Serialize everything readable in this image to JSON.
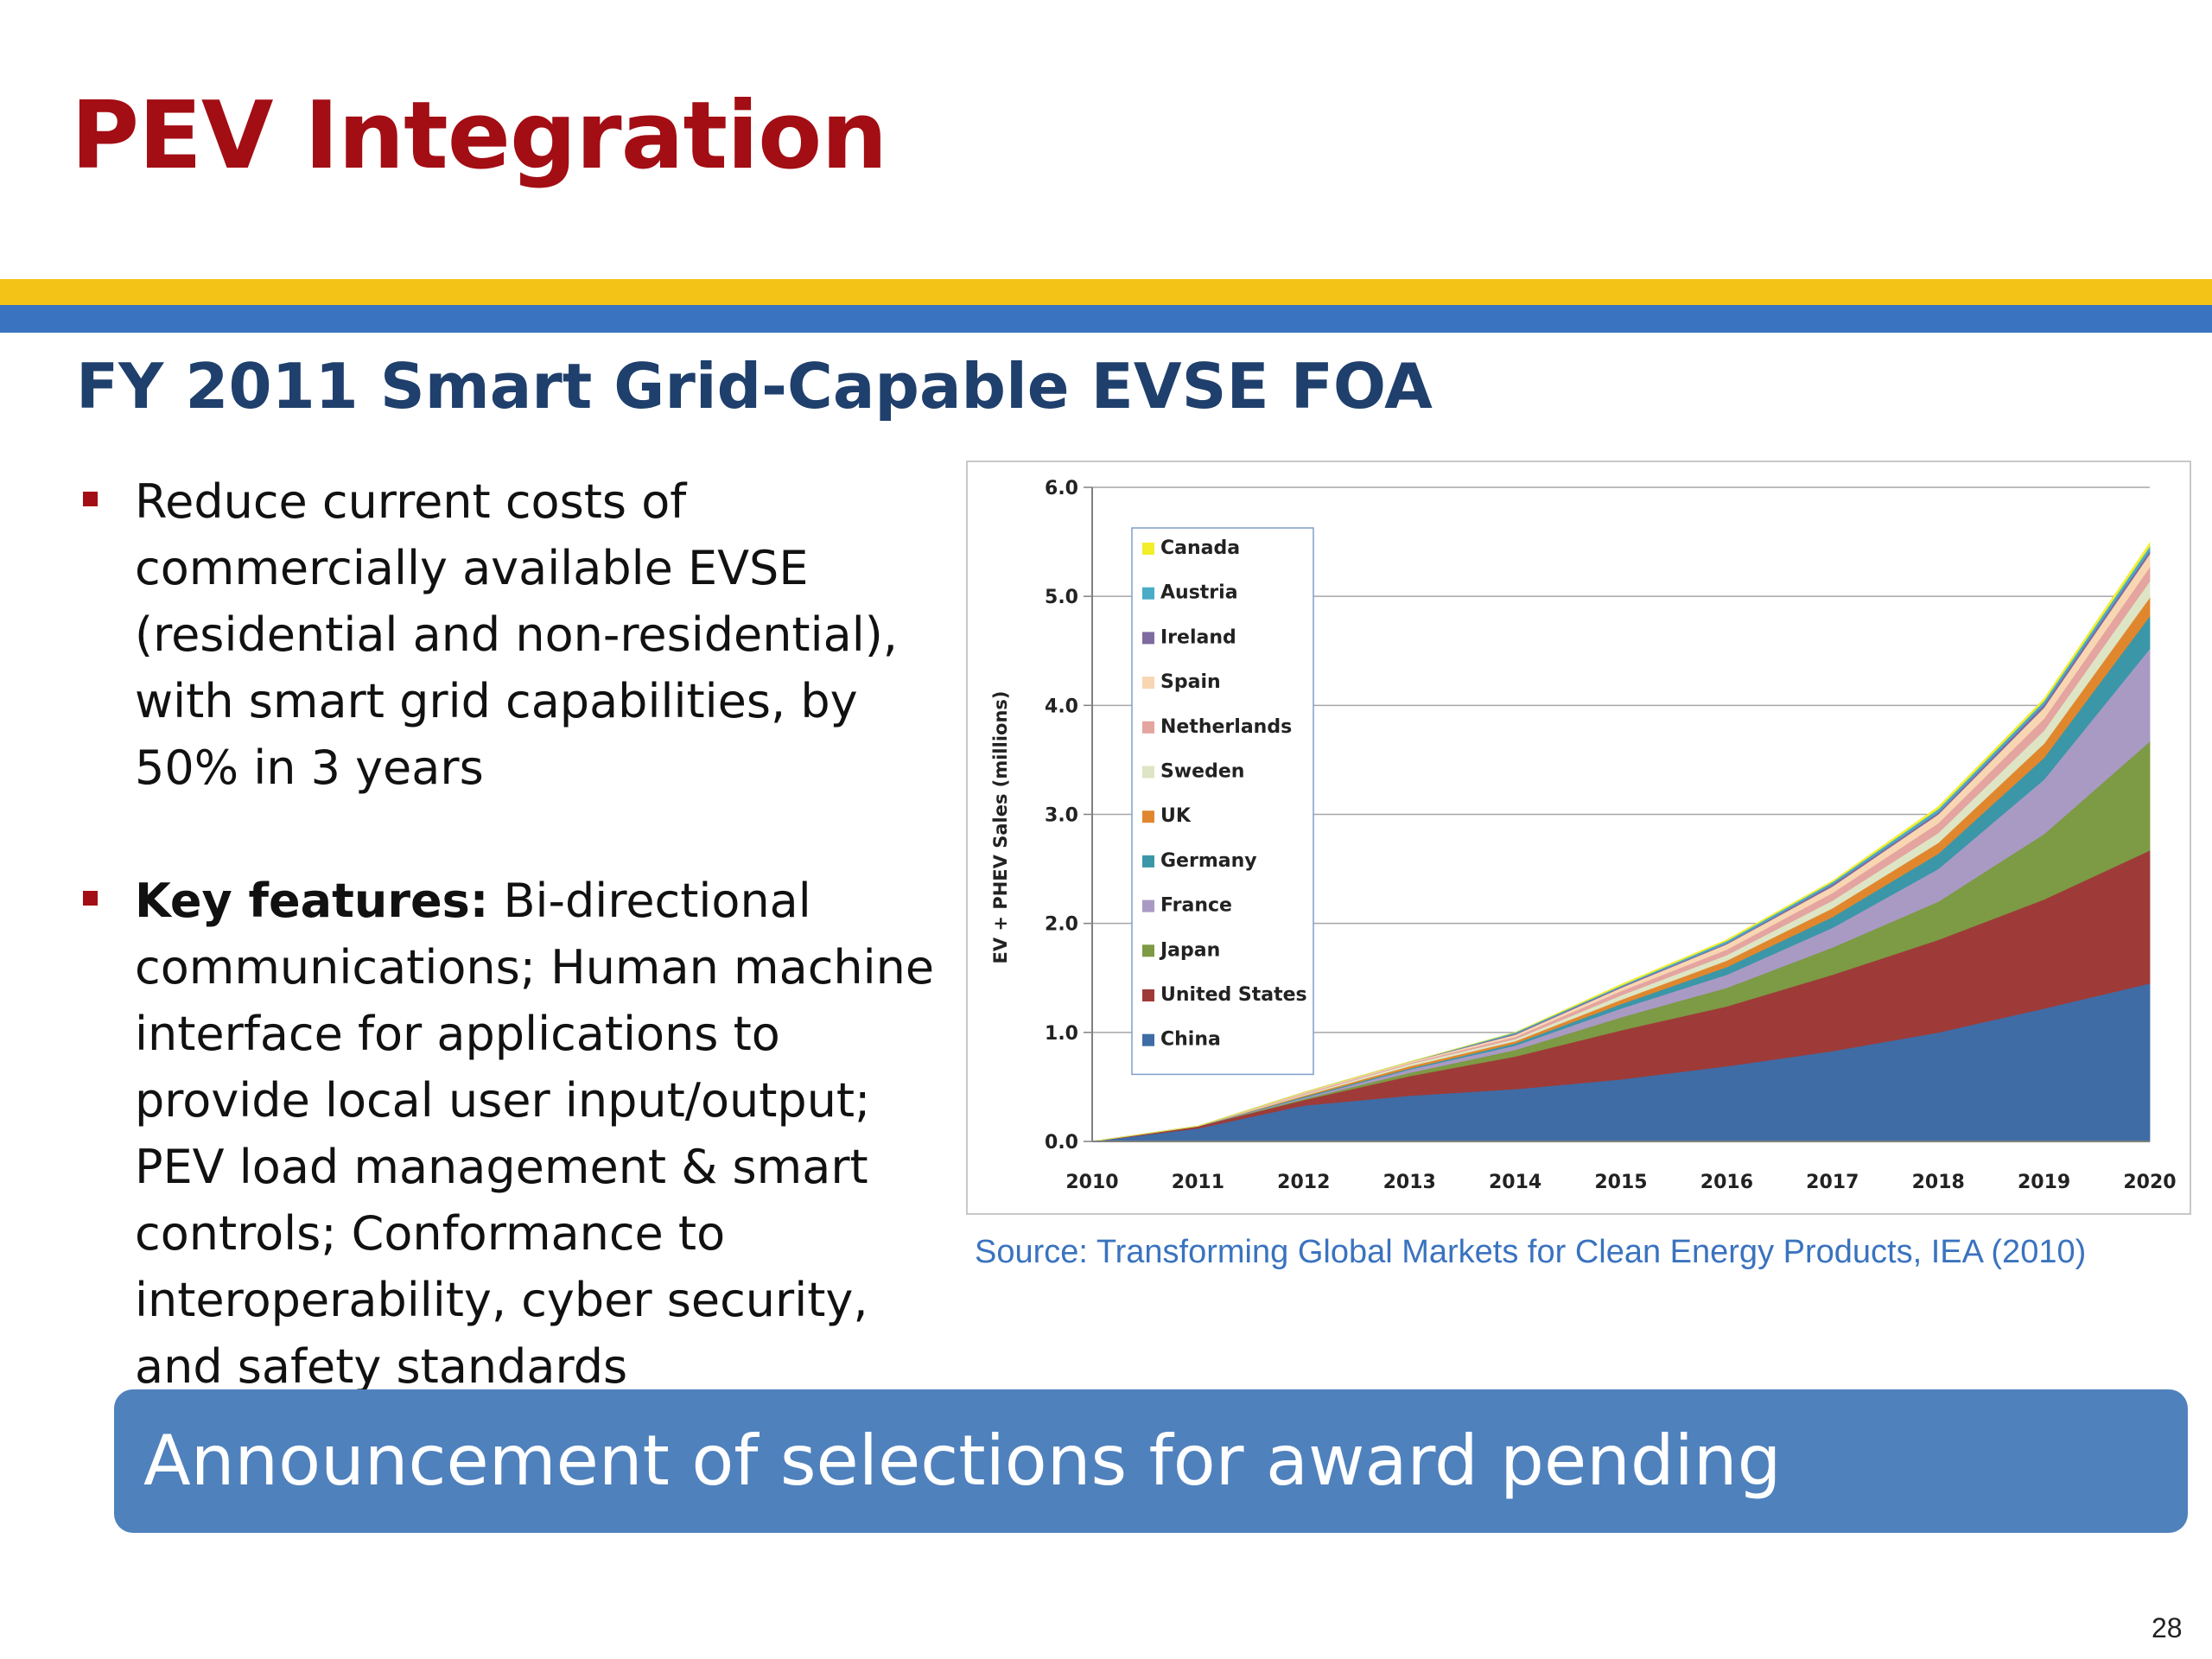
{
  "slide": {
    "title": "PEV Integration",
    "subtitle": "FY 2011 Smart Grid-Capable EVSE FOA",
    "page_number": "28"
  },
  "bullets": [
    {
      "strong": "",
      "text": "Reduce current costs of commercially available EVSE (residential and non-residential), with smart grid capabilities, by 50% in 3 years"
    },
    {
      "strong": "Key features:",
      "text": "Bi-directional communications; Human machine interface for applications to provide local user input/output; PEV load management & smart controls; Conformance to interoperability, cyber security, and safety standards"
    }
  ],
  "source": "Source:  Transforming Global Markets for Clean Energy Products, IEA (2010)",
  "announcement": "Announcement of selections for award pending",
  "colors": {
    "title": "#a30d14",
    "subtitle": "#1f3f6c",
    "band_gold": "#f3c318",
    "band_blue": "#3a73bf",
    "banner": "#4f81bd"
  },
  "chart_data": {
    "type": "area",
    "stacked": true,
    "ylabel": "EV + PHEV Sales (millions)",
    "xlabel": "",
    "x": [
      "2010",
      "2011",
      "2012",
      "2013",
      "2014",
      "2015",
      "2016",
      "2017",
      "2018",
      "2019",
      "2020"
    ],
    "ylim": [
      0,
      6
    ],
    "yticks": [
      "0.0",
      "1.0",
      "2.0",
      "3.0",
      "4.0",
      "5.0",
      "6.0"
    ],
    "grid": true,
    "legend_position": "top-left",
    "series": [
      {
        "name": "China",
        "color": "#3f6ca5",
        "values": [
          0,
          0.12,
          0.33,
          0.42,
          0.48,
          0.57,
          0.69,
          0.83,
          1.0,
          1.22,
          1.45
        ]
      },
      {
        "name": "United States",
        "color": "#9e3b38",
        "values": [
          0,
          0.02,
          0.05,
          0.18,
          0.3,
          0.45,
          0.55,
          0.7,
          0.85,
          1.0,
          1.22
        ]
      },
      {
        "name": "Japan",
        "color": "#7d9a44",
        "values": [
          0,
          0,
          0.01,
          0.03,
          0.06,
          0.12,
          0.17,
          0.25,
          0.35,
          0.6,
          1.0
        ]
      },
      {
        "name": "France",
        "color": "#a99ac4",
        "values": [
          0,
          0,
          0.01,
          0.03,
          0.04,
          0.08,
          0.12,
          0.18,
          0.3,
          0.5,
          0.85
        ]
      },
      {
        "name": "Germany",
        "color": "#3b96a8",
        "values": [
          0,
          0,
          0.01,
          0.01,
          0.02,
          0.04,
          0.07,
          0.1,
          0.14,
          0.2,
          0.3
        ]
      },
      {
        "name": "UK",
        "color": "#e0872e",
        "values": [
          0,
          0,
          0.01,
          0.02,
          0.02,
          0.04,
          0.06,
          0.08,
          0.1,
          0.13,
          0.17
        ]
      },
      {
        "name": "Sweden",
        "color": "#dde5c5",
        "values": [
          0,
          0,
          0.01,
          0.02,
          0.02,
          0.04,
          0.05,
          0.07,
          0.09,
          0.12,
          0.15
        ]
      },
      {
        "name": "Netherlands",
        "color": "#e4a4a0",
        "values": [
          0,
          0,
          0.01,
          0.01,
          0.02,
          0.04,
          0.05,
          0.07,
          0.09,
          0.11,
          0.13
        ]
      },
      {
        "name": "Spain",
        "color": "#f8d6b2",
        "values": [
          0,
          0,
          0.01,
          0.01,
          0.02,
          0.03,
          0.05,
          0.06,
          0.08,
          0.1,
          0.12
        ]
      },
      {
        "name": "Ireland",
        "color": "#7f6ba0",
        "values": [
          0,
          0,
          0,
          0,
          0.01,
          0.01,
          0.01,
          0.02,
          0.02,
          0.03,
          0.03
        ]
      },
      {
        "name": "Austria",
        "color": "#4bacc6",
        "values": [
          0,
          0,
          0,
          0,
          0.01,
          0.01,
          0.02,
          0.02,
          0.03,
          0.03,
          0.04
        ]
      },
      {
        "name": "Canada",
        "color": "#f2ee2a",
        "values": [
          0,
          0,
          0,
          0,
          0,
          0.01,
          0.01,
          0.01,
          0.02,
          0.02,
          0.03
        ]
      }
    ],
    "legend_order": [
      "Canada",
      "Austria",
      "Ireland",
      "Spain",
      "Netherlands",
      "Sweden",
      "UK",
      "Germany",
      "France",
      "Japan",
      "United States",
      "China"
    ]
  }
}
